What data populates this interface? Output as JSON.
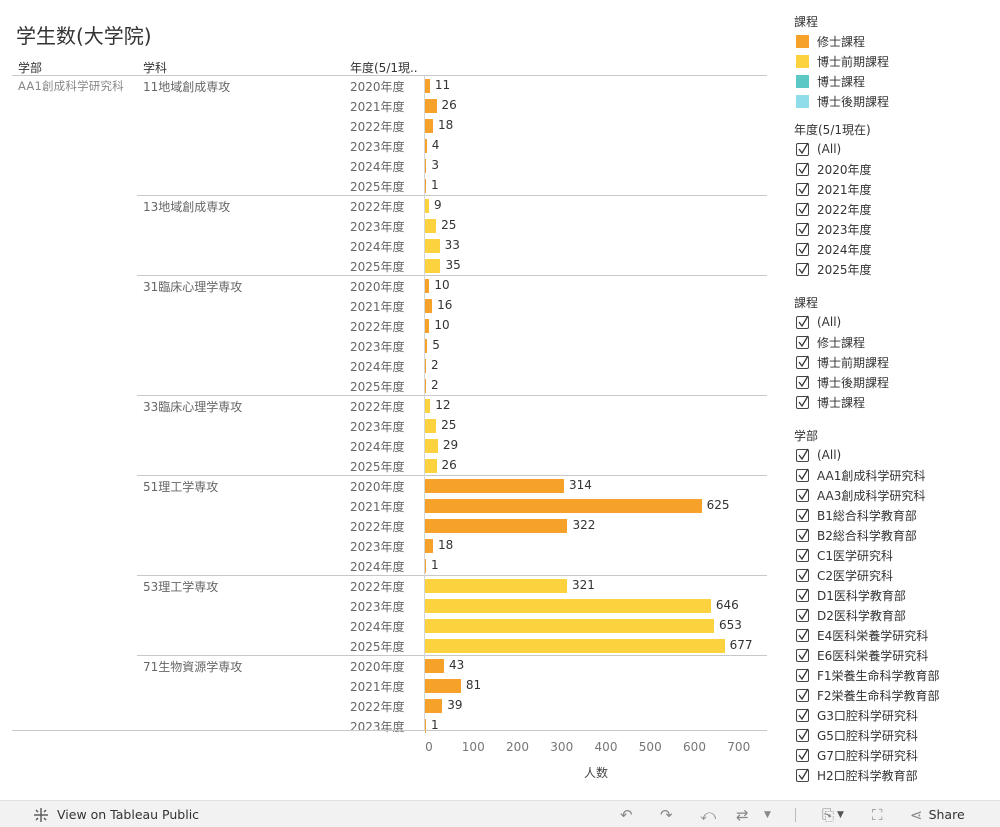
{
  "title": "学生数(大学院)",
  "headers": {
    "faculty": "学部",
    "department": "学科",
    "year": "年度(5/1現.."
  },
  "colors": {
    "修士課程": "#F5A12A",
    "博士前期課程": "#FCD33E",
    "博士課程": "#5BC8C5",
    "博士後期課程": "#8FDCEA"
  },
  "chart_data": {
    "type": "bar",
    "orientation": "horizontal",
    "faculty": "AA1創成科学研究科",
    "groups": [
      {
        "department": "11地域創成専攻",
        "rows": [
          {
            "year": "2020年度",
            "value": 11,
            "course": "修士課程"
          },
          {
            "year": "2021年度",
            "value": 26,
            "course": "修士課程"
          },
          {
            "year": "2022年度",
            "value": 18,
            "course": "修士課程"
          },
          {
            "year": "2023年度",
            "value": 4,
            "course": "修士課程"
          },
          {
            "year": "2024年度",
            "value": 3,
            "course": "修士課程"
          },
          {
            "year": "2025年度",
            "value": 1,
            "course": "修士課程"
          }
        ]
      },
      {
        "department": "13地域創成専攻",
        "rows": [
          {
            "year": "2022年度",
            "value": 9,
            "course": "博士前期課程"
          },
          {
            "year": "2023年度",
            "value": 25,
            "course": "博士前期課程"
          },
          {
            "year": "2024年度",
            "value": 33,
            "course": "博士前期課程"
          },
          {
            "year": "2025年度",
            "value": 35,
            "course": "博士前期課程"
          }
        ]
      },
      {
        "department": "31臨床心理学専攻",
        "rows": [
          {
            "year": "2020年度",
            "value": 10,
            "course": "修士課程"
          },
          {
            "year": "2021年度",
            "value": 16,
            "course": "修士課程"
          },
          {
            "year": "2022年度",
            "value": 10,
            "course": "修士課程"
          },
          {
            "year": "2023年度",
            "value": 5,
            "course": "修士課程"
          },
          {
            "year": "2024年度",
            "value": 2,
            "course": "修士課程"
          },
          {
            "year": "2025年度",
            "value": 2,
            "course": "修士課程"
          }
        ]
      },
      {
        "department": "33臨床心理学専攻",
        "rows": [
          {
            "year": "2022年度",
            "value": 12,
            "course": "博士前期課程"
          },
          {
            "year": "2023年度",
            "value": 25,
            "course": "博士前期課程"
          },
          {
            "year": "2024年度",
            "value": 29,
            "course": "博士前期課程"
          },
          {
            "year": "2025年度",
            "value": 26,
            "course": "博士前期課程"
          }
        ]
      },
      {
        "department": "51理工学専攻",
        "rows": [
          {
            "year": "2020年度",
            "value": 314,
            "course": "修士課程"
          },
          {
            "year": "2021年度",
            "value": 625,
            "course": "修士課程"
          },
          {
            "year": "2022年度",
            "value": 322,
            "course": "修士課程"
          },
          {
            "year": "2023年度",
            "value": 18,
            "course": "修士課程"
          },
          {
            "year": "2024年度",
            "value": 1,
            "course": "修士課程"
          }
        ]
      },
      {
        "department": "53理工学専攻",
        "rows": [
          {
            "year": "2022年度",
            "value": 321,
            "course": "博士前期課程"
          },
          {
            "year": "2023年度",
            "value": 646,
            "course": "博士前期課程"
          },
          {
            "year": "2024年度",
            "value": 653,
            "course": "博士前期課程"
          },
          {
            "year": "2025年度",
            "value": 677,
            "course": "博士前期課程"
          }
        ]
      },
      {
        "department": "71生物資源学専攻",
        "rows": [
          {
            "year": "2020年度",
            "value": 43,
            "course": "修士課程"
          },
          {
            "year": "2021年度",
            "value": 81,
            "course": "修士課程"
          },
          {
            "year": "2022年度",
            "value": 39,
            "course": "修士課程"
          },
          {
            "year": "2023年度",
            "value": 1,
            "course": "修士課程"
          }
        ]
      }
    ],
    "xticks": [
      0,
      100,
      200,
      300,
      400,
      500,
      600,
      700
    ],
    "xlabel": "人数",
    "xlim": [
      0,
      780
    ]
  },
  "legend": {
    "title": "課程",
    "items": [
      "修士課程",
      "博士前期課程",
      "博士課程",
      "博士後期課程"
    ]
  },
  "filters": [
    {
      "title": "年度(5/1現在)",
      "items": [
        "(All)",
        "2020年度",
        "2021年度",
        "2022年度",
        "2023年度",
        "2024年度",
        "2025年度"
      ]
    },
    {
      "title": "課程",
      "items": [
        "(All)",
        "修士課程",
        "博士前期課程",
        "博士後期課程",
        "博士課程"
      ]
    },
    {
      "title": "学部",
      "items": [
        "(All)",
        "AA1創成科学研究科",
        "AA3創成科学研究科",
        "B1総合科学教育部",
        "B2総合科学教育部",
        "C1医学研究科",
        "C2医学研究科",
        "D1医科学教育部",
        "D2医科学教育部",
        "E4医科栄養学研究科",
        "E6医科栄養学研究科",
        "F1栄養生命科学教育部",
        "F2栄養生命科学教育部",
        "G3口腔科学研究科",
        "G5口腔科学研究科",
        "G7口腔科学研究科",
        "H2口腔科学教育部"
      ]
    }
  ],
  "toolbar": {
    "view_label": "View on Tableau Public",
    "share_label": "Share"
  }
}
